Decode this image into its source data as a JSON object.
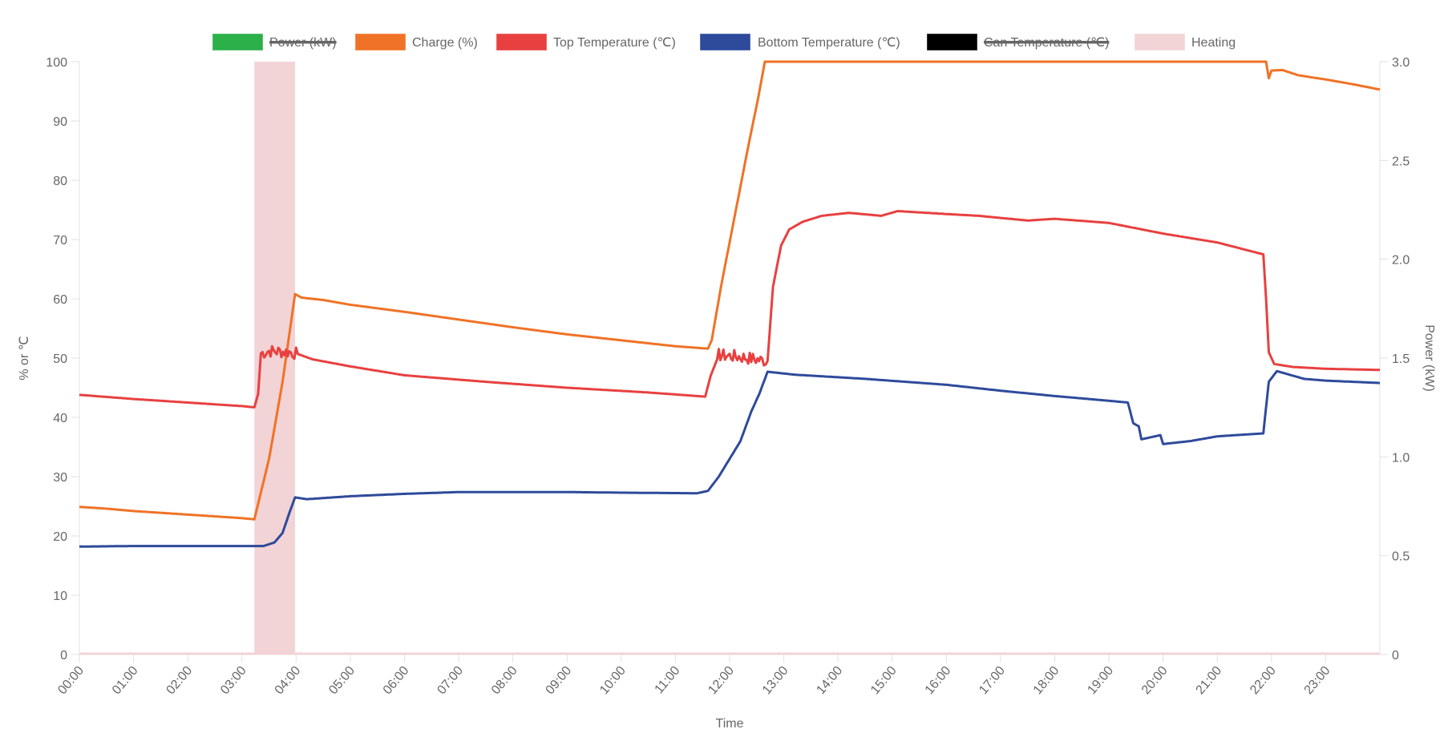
{
  "chart_data": {
    "type": "line",
    "xlabel": "Time",
    "ylabel": "% or ℃",
    "y2label": "Power (kW)",
    "xlim": [
      0,
      24
    ],
    "ylim": [
      0,
      100
    ],
    "y2lim": [
      0,
      3.0
    ],
    "x_ticks": [
      "00:00",
      "01:00",
      "02:00",
      "03:00",
      "04:00",
      "05:00",
      "06:00",
      "07:00",
      "08:00",
      "09:00",
      "10:00",
      "11:00",
      "12:00",
      "13:00",
      "14:00",
      "15:00",
      "16:00",
      "17:00",
      "18:00",
      "19:00",
      "20:00",
      "21:00",
      "22:00",
      "23:00"
    ],
    "y_ticks": [
      "0",
      "10",
      "20",
      "30",
      "40",
      "50",
      "60",
      "70",
      "80",
      "90",
      "100"
    ],
    "y2_ticks": [
      "0",
      "0.5",
      "1.0",
      "1.5",
      "2.0",
      "2.5",
      "3.0"
    ],
    "grid": false,
    "legend_position": "top-center",
    "legend": [
      {
        "label": "Power (kW)",
        "color": "#2bb04a",
        "hidden": true
      },
      {
        "label": "Charge (%)",
        "color": "#f07226",
        "hidden": false
      },
      {
        "label": "Top Temperature (℃)",
        "color": "#e84040",
        "hidden": false
      },
      {
        "label": "Bottom Temperature (℃)",
        "color": "#2e4a9b",
        "hidden": false
      },
      {
        "label": "Can Temperature (℃)",
        "color": "#000000",
        "hidden": true
      },
      {
        "label": "Heating",
        "color": "#f2d3d6",
        "hidden": false
      }
    ],
    "heating_intervals": [
      [
        3.23,
        3.98
      ]
    ],
    "series": [
      {
        "name": "Charge (%)",
        "color": "#f07226",
        "points": [
          [
            0,
            24.9
          ],
          [
            0.5,
            24.6
          ],
          [
            1,
            24.2
          ],
          [
            1.5,
            23.9
          ],
          [
            2,
            23.6
          ],
          [
            2.5,
            23.3
          ],
          [
            3.0,
            23.0
          ],
          [
            3.23,
            22.8
          ],
          [
            3.5,
            33
          ],
          [
            3.75,
            46
          ],
          [
            3.98,
            60.8
          ],
          [
            4.1,
            60.2
          ],
          [
            4.5,
            59.8
          ],
          [
            5,
            59
          ],
          [
            6,
            57.8
          ],
          [
            7,
            56.5
          ],
          [
            8,
            55.2
          ],
          [
            9,
            54
          ],
          [
            10,
            53
          ],
          [
            11,
            52
          ],
          [
            11.6,
            51.6
          ],
          [
            11.67,
            53
          ],
          [
            11.84,
            62
          ],
          [
            12.01,
            70
          ],
          [
            12.18,
            78
          ],
          [
            12.35,
            86
          ],
          [
            12.53,
            94
          ],
          [
            12.65,
            100
          ],
          [
            21.9,
            100
          ],
          [
            21.95,
            97.2
          ],
          [
            22.0,
            98.5
          ],
          [
            22.2,
            98.6
          ],
          [
            22.5,
            97.7
          ],
          [
            23,
            97
          ],
          [
            23.5,
            96.2
          ],
          [
            24,
            95.3
          ]
        ]
      },
      {
        "name": "Top Temperature (℃)",
        "color": "#e84040",
        "points": [
          [
            0,
            43.8
          ],
          [
            1,
            43.1
          ],
          [
            2,
            42.5
          ],
          [
            3.0,
            41.9
          ],
          [
            3.23,
            41.7
          ],
          [
            3.3,
            44
          ],
          [
            3.35,
            50.8
          ],
          [
            3.5,
            51.2
          ],
          [
            3.7,
            51.1
          ],
          [
            3.9,
            51
          ],
          [
            4.0,
            50.8
          ],
          [
            4.3,
            49.8
          ],
          [
            5,
            48.6
          ],
          [
            6,
            47.1
          ],
          [
            7.5,
            46
          ],
          [
            9,
            45
          ],
          [
            10.5,
            44.2
          ],
          [
            11.55,
            43.5
          ],
          [
            11.65,
            47
          ],
          [
            11.8,
            50.5
          ],
          [
            12.2,
            50.2
          ],
          [
            12.6,
            49.6
          ],
          [
            12.7,
            49.5
          ],
          [
            12.8,
            62
          ],
          [
            12.95,
            69
          ],
          [
            13.1,
            71.7
          ],
          [
            13.35,
            73
          ],
          [
            13.7,
            74
          ],
          [
            14.2,
            74.5
          ],
          [
            14.8,
            74
          ],
          [
            15.1,
            74.8
          ],
          [
            16,
            74.3
          ],
          [
            16.6,
            74
          ],
          [
            17.5,
            73.2
          ],
          [
            18,
            73.5
          ],
          [
            19,
            72.8
          ],
          [
            20,
            71
          ],
          [
            21,
            69.5
          ],
          [
            21.85,
            67.5
          ],
          [
            21.9,
            60
          ],
          [
            21.95,
            51
          ],
          [
            22.05,
            49
          ],
          [
            22.4,
            48.5
          ],
          [
            23,
            48.2
          ],
          [
            24,
            48
          ]
        ]
      },
      {
        "name": "Bottom Temperature (℃)",
        "color": "#2e4a9b",
        "points": [
          [
            0,
            18.2
          ],
          [
            1,
            18.3
          ],
          [
            2,
            18.3
          ],
          [
            3,
            18.3
          ],
          [
            3.4,
            18.3
          ],
          [
            3.6,
            18.9
          ],
          [
            3.75,
            20.5
          ],
          [
            3.88,
            24
          ],
          [
            3.98,
            26.5
          ],
          [
            4.2,
            26.2
          ],
          [
            5,
            26.7
          ],
          [
            6,
            27.1
          ],
          [
            7,
            27.4
          ],
          [
            9,
            27.4
          ],
          [
            10,
            27.3
          ],
          [
            11.4,
            27.2
          ],
          [
            11.6,
            27.6
          ],
          [
            11.8,
            30
          ],
          [
            12.0,
            33
          ],
          [
            12.2,
            36
          ],
          [
            12.4,
            41
          ],
          [
            12.55,
            44
          ],
          [
            12.7,
            47.7
          ],
          [
            13.2,
            47.2
          ],
          [
            14.5,
            46.5
          ],
          [
            16,
            45.5
          ],
          [
            17,
            44.5
          ],
          [
            18,
            43.6
          ],
          [
            19,
            42.8
          ],
          [
            19.35,
            42.5
          ],
          [
            19.45,
            39
          ],
          [
            19.55,
            38.5
          ],
          [
            19.6,
            36.3
          ],
          [
            19.95,
            37
          ],
          [
            20.0,
            35.5
          ],
          [
            20.5,
            36
          ],
          [
            21,
            36.8
          ],
          [
            21.85,
            37.3
          ],
          [
            21.95,
            46
          ],
          [
            22.1,
            47.8
          ],
          [
            22.6,
            46.5
          ],
          [
            23,
            46.2
          ],
          [
            24,
            45.8
          ]
        ]
      }
    ]
  }
}
